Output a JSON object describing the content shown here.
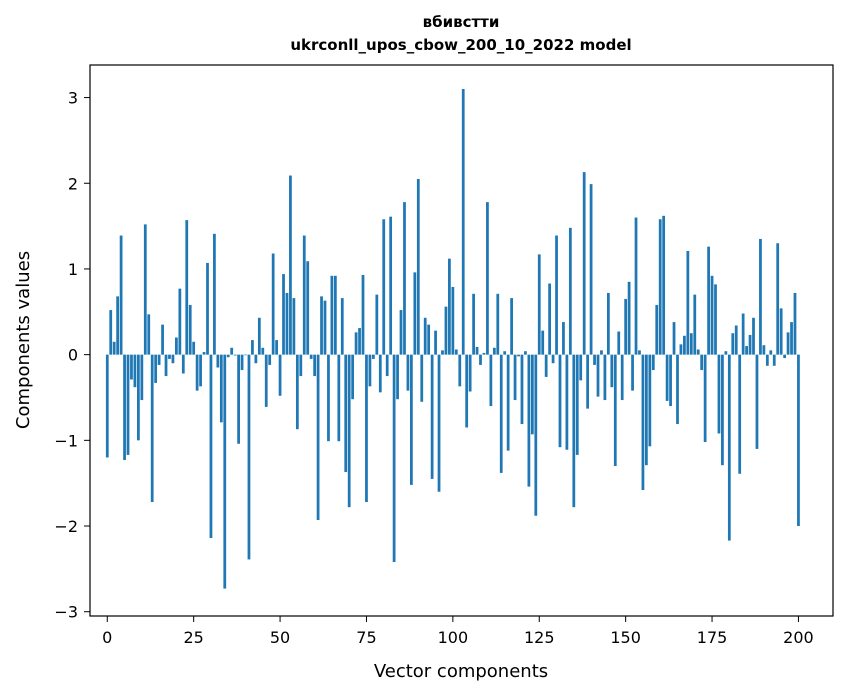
{
  "chart_data": {
    "type": "bar",
    "title": "вбивстти",
    "subtitle": "ukrconll_upos_cbow_200_10_2022 model",
    "xlabel": "Vector components",
    "ylabel": "Components values",
    "xlim": [
      -5,
      210
    ],
    "ylim": [
      -3.05,
      3.38
    ],
    "xticks": [
      0,
      25,
      50,
      75,
      100,
      125,
      150,
      175,
      200
    ],
    "yticks": [
      -3,
      -2,
      -1,
      0,
      1,
      2,
      3
    ],
    "grid": false,
    "legend": "none",
    "bar_color": "#1f77b4",
    "values": [
      -1.2,
      0.52,
      0.15,
      0.68,
      1.39,
      -1.23,
      -1.17,
      -0.29,
      -0.38,
      -1.0,
      -0.53,
      1.52,
      0.47,
      -1.72,
      -0.33,
      -0.12,
      0.35,
      -0.25,
      -0.05,
      -0.1,
      0.2,
      0.77,
      -0.22,
      1.57,
      0.58,
      0.15,
      -0.42,
      -0.37,
      0.03,
      1.07,
      -2.14,
      1.41,
      -0.15,
      -0.79,
      -2.73,
      -0.03,
      0.08,
      -0.01,
      -1.04,
      -0.18,
      0.0,
      -2.39,
      0.17,
      -0.1,
      0.43,
      0.08,
      -0.61,
      -0.12,
      1.18,
      0.17,
      -0.48,
      0.94,
      0.72,
      2.09,
      0.66,
      -0.87,
      -0.25,
      1.39,
      1.09,
      -0.05,
      -0.25,
      -1.93,
      0.68,
      0.63,
      -1.01,
      0.92,
      0.92,
      -1.01,
      0.66,
      -1.37,
      -1.78,
      -0.52,
      0.26,
      0.31,
      0.93,
      -1.72,
      -0.37,
      -0.05,
      0.7,
      -0.44,
      1.58,
      -0.25,
      1.61,
      -2.42,
      -0.52,
      0.52,
      1.78,
      -0.42,
      -1.52,
      0.96,
      2.05,
      -0.55,
      0.43,
      0.35,
      -1.45,
      0.28,
      -1.6,
      0.05,
      0.56,
      1.12,
      0.79,
      0.06,
      -0.37,
      3.1,
      -0.85,
      -0.43,
      0.71,
      0.09,
      -0.12,
      0.02,
      1.78,
      -0.6,
      0.08,
      0.71,
      -1.38,
      0.04,
      -1.12,
      0.66,
      -0.53,
      -0.02,
      -0.81,
      0.04,
      -1.54,
      -0.93,
      -1.88,
      1.17,
      0.28,
      -0.26,
      0.83,
      -0.1,
      1.39,
      -1.08,
      0.38,
      -1.11,
      1.48,
      -1.78,
      -1.17,
      -0.3,
      2.13,
      -0.63,
      1.99,
      -0.12,
      -0.49,
      0.05,
      -0.53,
      0.72,
      -0.38,
      -1.3,
      0.27,
      -0.53,
      0.65,
      0.85,
      -0.42,
      1.6,
      0.05,
      -1.58,
      -1.29,
      -1.07,
      -0.18,
      0.58,
      1.58,
      1.62,
      -0.54,
      -0.6,
      0.38,
      -0.81,
      0.12,
      0.22,
      1.21,
      0.25,
      0.7,
      0.06,
      -0.18,
      -1.02,
      1.26,
      0.92,
      0.82,
      -0.92,
      -1.29,
      0.04,
      -2.17,
      0.25,
      0.34,
      -1.39,
      0.48,
      0.1,
      0.23,
      0.43,
      -1.1,
      1.35,
      0.11,
      -0.13,
      0.05,
      -0.13,
      1.3,
      0.54,
      -0.04,
      0.26,
      0.38,
      0.72,
      -2.0
    ]
  }
}
